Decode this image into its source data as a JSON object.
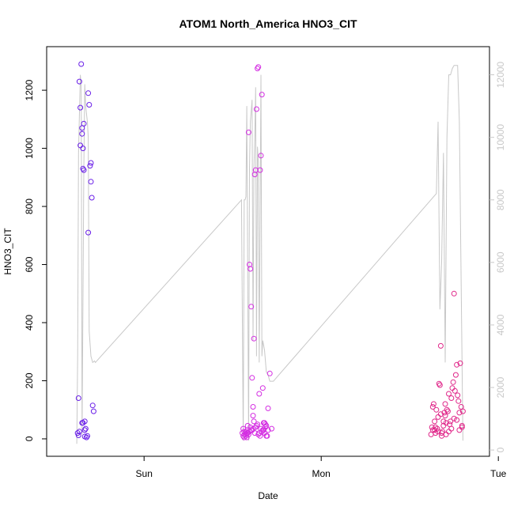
{
  "chart_data": {
    "type": "scatter",
    "title": "ATOM1 North_America HNO3_CIT",
    "xlabel": "Date",
    "ylabel": "HNO3_CIT",
    "x_ticks": [
      "Sun",
      "Mon",
      "Tue"
    ],
    "y_ticks": [
      "0",
      "200",
      "400",
      "600",
      "800",
      "1000",
      "1200"
    ],
    "y2_ticks": [
      "0",
      "2000",
      "4000",
      "6000",
      "8000",
      "10000",
      "12000"
    ],
    "xlim": [
      -0.55,
      1.95
    ],
    "ylim": [
      -60,
      1350
    ],
    "y2lim": [
      -200,
      12900
    ],
    "colors": {
      "line": "#c8c8c8",
      "right_axis": "#c8c8c8"
    },
    "line_series": {
      "x": [
        -0.38,
        -0.375,
        -0.37,
        -0.36,
        -0.355,
        -0.35,
        -0.34,
        -0.335,
        -0.33,
        -0.32,
        -0.315,
        -0.31,
        -0.3,
        -0.295,
        -0.29,
        -0.28,
        -0.275,
        0.55,
        0.56,
        0.565,
        0.57,
        0.575,
        0.58,
        0.59,
        0.595,
        0.6,
        0.61,
        0.615,
        0.62,
        0.625,
        0.63,
        0.635,
        0.64,
        0.645,
        0.65,
        0.66,
        0.665,
        0.67,
        0.68,
        0.69,
        0.7,
        0.71,
        0.72,
        0.73,
        1.65,
        1.66,
        1.67,
        1.68,
        1.69,
        1.7,
        1.71,
        1.72,
        1.73,
        1.74,
        1.75,
        1.76,
        1.77,
        1.78,
        1.8
      ],
      "y": [
        200,
        3000,
        9500,
        12000,
        11600,
        500,
        9000,
        11700,
        11000,
        10500,
        10000,
        3800,
        3000,
        2900,
        2800,
        2850,
        2800,
        8000,
        300,
        8000,
        8000,
        8100,
        11000,
        300,
        9000,
        10500,
        11200,
        3500,
        9000,
        10000,
        11600,
        3000,
        9700,
        9200,
        2800,
        12000,
        3000,
        3500,
        3200,
        2500,
        2400,
        2200,
        2200,
        2200,
        8200,
        10500,
        4500,
        6000,
        9500,
        2800,
        10000,
        12000,
        12000,
        12200,
        12300,
        12300,
        12300,
        10500,
        300
      ]
    },
    "series": [
      {
        "color": "#6a1fe8",
        "x": [
          -0.375,
          -0.37,
          -0.37,
          -0.365,
          -0.365,
          -0.36,
          -0.36,
          -0.355,
          -0.35,
          -0.35,
          -0.345,
          -0.345,
          -0.34,
          -0.335,
          -0.335,
          -0.33,
          -0.325,
          -0.32,
          -0.315,
          -0.315,
          -0.31,
          -0.305,
          -0.3,
          -0.3,
          -0.295,
          -0.29,
          -0.285,
          -0.35,
          -0.345,
          -0.34,
          -0.335
        ],
        "y": [
          20,
          140,
          12,
          25,
          1230,
          1140,
          1010,
          1290,
          1050,
          1070,
          1000,
          930,
          925,
          60,
          30,
          35,
          5,
          10,
          710,
          1190,
          1150,
          940,
          950,
          885,
          830,
          115,
          95,
          55,
          55,
          1085,
          8
        ]
      },
      {
        "color": "#d42ee2",
        "x": [
          0.555,
          0.56,
          0.56,
          0.565,
          0.57,
          0.575,
          0.58,
          0.585,
          0.59,
          0.595,
          0.6,
          0.605,
          0.61,
          0.615,
          0.62,
          0.62,
          0.625,
          0.63,
          0.635,
          0.64,
          0.645,
          0.65,
          0.655,
          0.66,
          0.665,
          0.67,
          0.675,
          0.68,
          0.685,
          0.69,
          0.7,
          0.71,
          0.72,
          0.585,
          0.59,
          0.595,
          0.6,
          0.61,
          0.615,
          0.625,
          0.63,
          0.635,
          0.64,
          0.645,
          0.65,
          0.655,
          0.66,
          0.665,
          0.67,
          0.675,
          0.68,
          0.685,
          0.69,
          0.695,
          0.7,
          0.57,
          0.575,
          0.58,
          0.565,
          0.605,
          0.615
        ],
        "y": [
          20,
          10,
          35,
          25,
          15,
          10,
          5,
          45,
          1055,
          600,
          585,
          455,
          210,
          110,
          345,
          60,
          910,
          925,
          1135,
          1275,
          1280,
          155,
          925,
          975,
          1185,
          175,
          30,
          55,
          50,
          10,
          105,
          225,
          35,
          20,
          15,
          25,
          40,
          30,
          80,
          20,
          40,
          45,
          50,
          15,
          20,
          10,
          35,
          25,
          30,
          55,
          20,
          40,
          45,
          10,
          30,
          15,
          25,
          20,
          5,
          30,
          35
        ]
      },
      {
        "color": "#e0288a",
        "x": [
          1.62,
          1.625,
          1.63,
          1.635,
          1.64,
          1.645,
          1.65,
          1.655,
          1.66,
          1.665,
          1.67,
          1.675,
          1.68,
          1.685,
          1.69,
          1.695,
          1.7,
          1.705,
          1.71,
          1.715,
          1.72,
          1.725,
          1.73,
          1.735,
          1.74,
          1.745,
          1.75,
          1.755,
          1.76,
          1.765,
          1.77,
          1.775,
          1.78,
          1.785,
          1.79,
          1.795,
          1.8,
          1.63,
          1.645,
          1.66,
          1.675,
          1.69,
          1.705,
          1.72,
          1.735,
          1.75,
          1.765,
          1.78,
          1.795,
          1.64,
          1.68,
          1.7
        ],
        "y": [
          15,
          40,
          110,
          120,
          30,
          40,
          100,
          35,
          25,
          190,
          185,
          320,
          20,
          25,
          60,
          90,
          80,
          15,
          100,
          95,
          155,
          50,
          60,
          140,
          175,
          195,
          500,
          165,
          220,
          255,
          150,
          130,
          90,
          260,
          110,
          45,
          95,
          30,
          20,
          75,
          85,
          45,
          55,
          25,
          35,
          70,
          65,
          30,
          40,
          60,
          10,
          120
        ]
      }
    ]
  }
}
